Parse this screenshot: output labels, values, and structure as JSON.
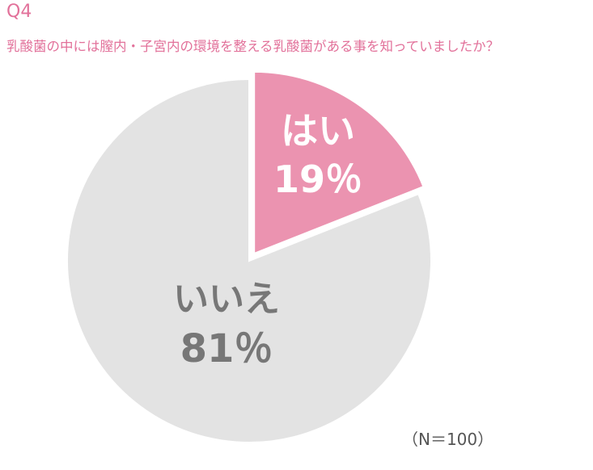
{
  "header": {
    "question_number": "Q4",
    "question_text": "乳酸菌の中には膣内・子宮内の環境を整える乳酸菌がある事を知っていましたか？"
  },
  "note": "（N＝100）",
  "colors": {
    "accent": "#e2719a",
    "yes": "#eb93b0",
    "no": "#e3e3e3",
    "yes_text": "#ffffff",
    "no_text": "#777777"
  },
  "chart_data": {
    "type": "pie",
    "title": "",
    "slices": [
      {
        "label": "はい",
        "value": 19,
        "value_label": "19％",
        "color": "#eb93b0",
        "exploded": true
      },
      {
        "label": "いいえ",
        "value": 81,
        "value_label": "81％",
        "color": "#e3e3e3",
        "exploded": false
      }
    ]
  }
}
